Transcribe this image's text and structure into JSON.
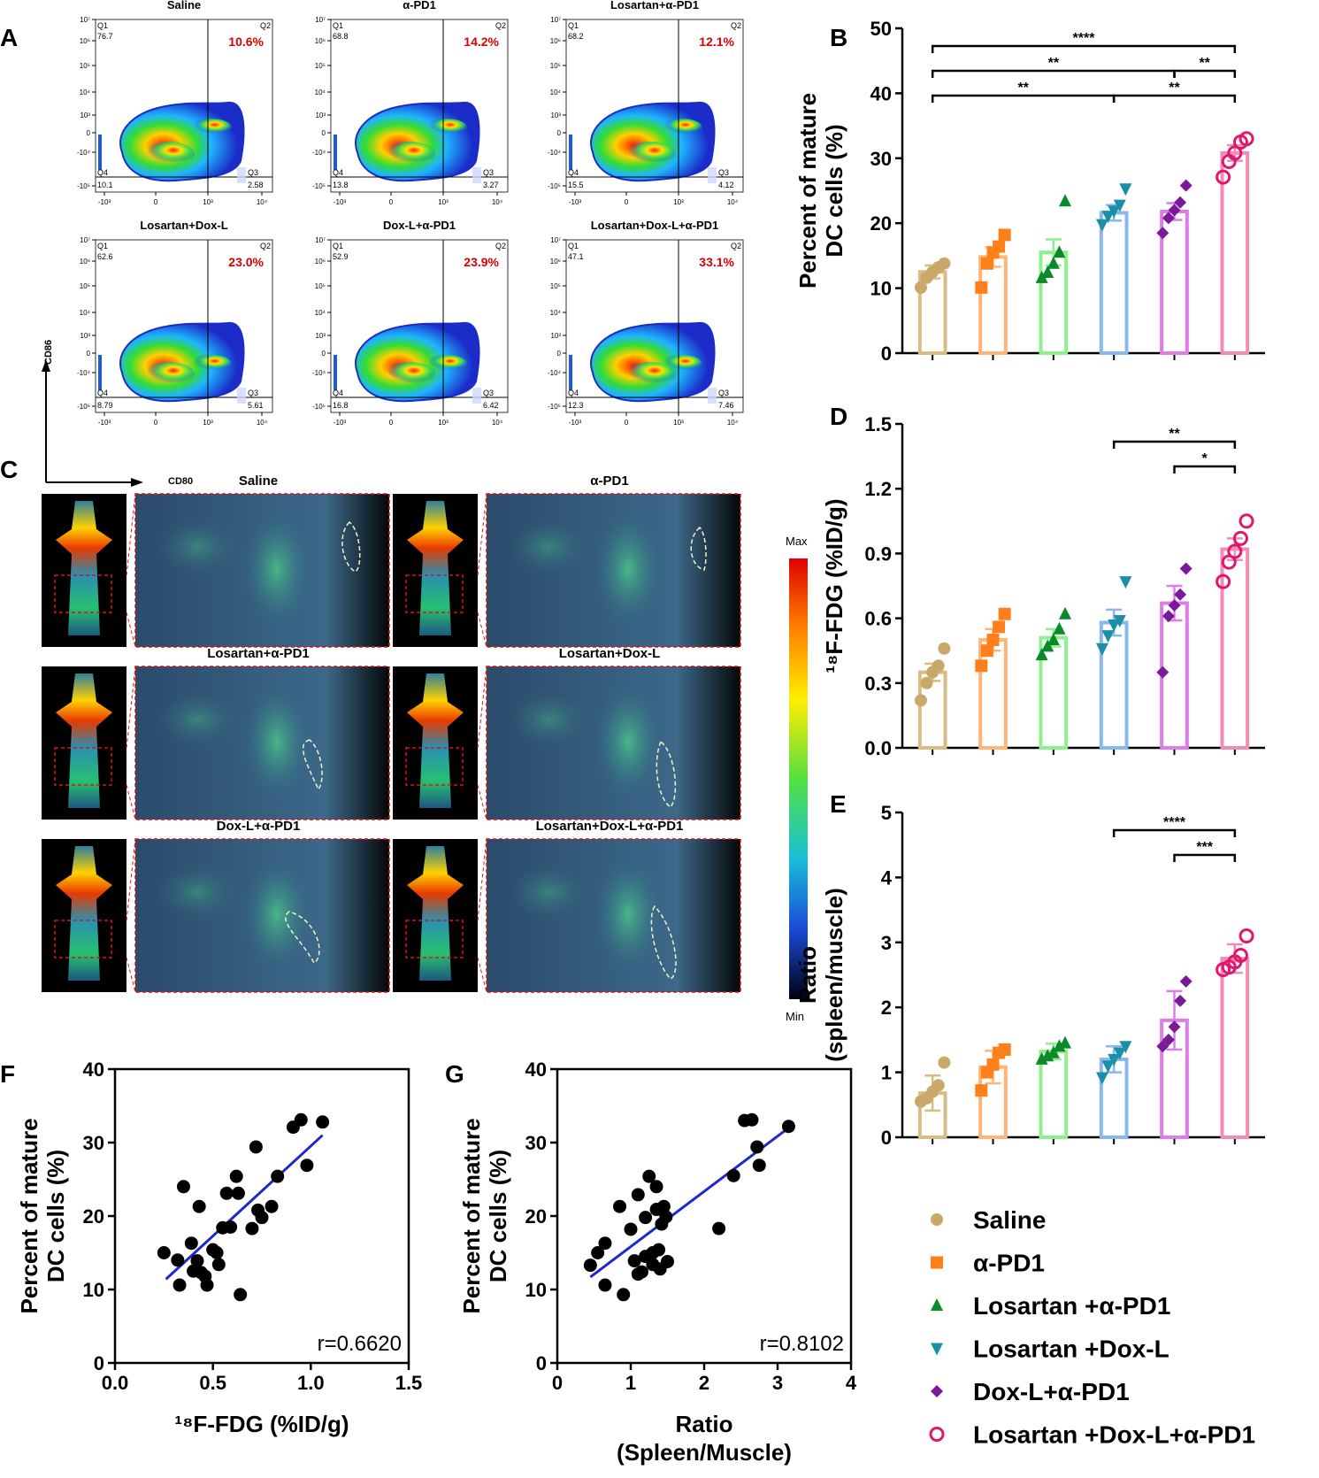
{
  "panel_letters": {
    "A": "A",
    "B": "B",
    "C": "C",
    "D": "D",
    "E": "E",
    "F": "F",
    "G": "G"
  },
  "colors": {
    "saline": "#c9a86a",
    "apd1": "#ff7f1a",
    "los_apd1": "#0a8a28",
    "los_doxl": "#1b8fa8",
    "doxl_apd1": "#7a1a9a",
    "triple": "#e0186c",
    "bar_saline": "#d8bc84",
    "bar_apd1": "#ffb578",
    "bar_los_apd1": "#8cf08c",
    "bar_los_doxl": "#8ab8ee",
    "bar_doxl_apd1": "#de7de8",
    "bar_triple": "#f38ab8",
    "percent_red": "#d90000",
    "regression": "#1f28c8"
  },
  "flow": {
    "x_axis_label": "CD80",
    "y_axis_label": "CD86",
    "y_ticks": [
      "10⁷",
      "10⁶",
      "10⁵",
      "10⁴",
      "10³",
      "0",
      "-10⁴",
      "-10⁵"
    ],
    "x_ticks": [
      "-10³",
      "0",
      "10³",
      "10⁴"
    ],
    "plots": [
      {
        "title": "Saline",
        "q1": "Q1",
        "q1_val": "76.7",
        "q2": "Q2",
        "q2_pct": "10.6%",
        "q3": "Q3",
        "q3_val": "2.58",
        "q4": "Q4",
        "q4_val": "10.1"
      },
      {
        "title": "α-PD1",
        "q1": "Q1",
        "q1_val": "68.8",
        "q2": "Q2",
        "q2_pct": "14.2%",
        "q3": "Q3",
        "q3_val": "3.27",
        "q4": "Q4",
        "q4_val": "13.8"
      },
      {
        "title": "Losartan+α-PD1",
        "q1": "Q1",
        "q1_val": "68.2",
        "q2": "Q2",
        "q2_pct": "12.1%",
        "q3": "Q3",
        "q3_val": "4.12",
        "q4": "Q4",
        "q4_val": "15.5"
      },
      {
        "title": "Losartan+Dox-L",
        "q1": "Q1",
        "q1_val": "62.6",
        "q2": "Q2",
        "q2_pct": "23.0%",
        "q3": "Q3",
        "q3_val": "5.61",
        "q4": "Q4",
        "q4_val": "8.79"
      },
      {
        "title": "Dox-L+α-PD1",
        "q1": "Q1",
        "q1_val": "52.9",
        "q2": "Q2",
        "q2_pct": "23.9%",
        "q3": "Q3",
        "q3_val": "6.42",
        "q4": "Q4",
        "q4_val": "16.8"
      },
      {
        "title": "Losartan+Dox-L+α-PD1",
        "q1": "Q1",
        "q1_val": "47.1",
        "q2": "Q2",
        "q2_pct": "33.1%",
        "q3": "Q3",
        "q3_val": "7.46",
        "q4": "Q4",
        "q4_val": "12.3"
      }
    ]
  },
  "pet": {
    "scale_max": "Max",
    "scale_min": "Min",
    "images": [
      {
        "title": "Saline"
      },
      {
        "title": "α-PD1"
      },
      {
        "title": "Losartan+α-PD1"
      },
      {
        "title": "Losartan+Dox-L"
      },
      {
        "title": "Dox-L+α-PD1"
      },
      {
        "title": "Losartan+Dox-L+α-PD1"
      }
    ]
  },
  "chart_data": [
    {
      "id": "B",
      "type": "bar",
      "ylabel_line1": "Percent of mature",
      "ylabel_line2": "DC cells  (%)",
      "ylim": [
        0,
        50
      ],
      "yticks": [
        "0",
        "10",
        "20",
        "30",
        "40",
        "50"
      ],
      "categories": [
        "Saline",
        "α-PD1",
        "Losartan+α-PD1",
        "Losartan+Dox-L",
        "Dox-L+α-PD1",
        "Losartan+Dox-L+α-PD1"
      ],
      "means": [
        12.5,
        14.8,
        15.5,
        21.6,
        21.8,
        30.8
      ],
      "sem": [
        1.0,
        1.5,
        2.0,
        1.2,
        1.3,
        1.2
      ],
      "points": [
        [
          10.1,
          11.6,
          12.5,
          13.2,
          13.8
        ],
        [
          10.1,
          13.8,
          15.5,
          16.4,
          18.2
        ],
        [
          11.6,
          12.4,
          13.8,
          15.5,
          23.4
        ],
        [
          19.8,
          21.1,
          21.9,
          22.8,
          25.3
        ],
        [
          18.5,
          20.8,
          22.0,
          23.2,
          25.8
        ],
        [
          27.1,
          29.5,
          30.8,
          32.5,
          33.0
        ]
      ],
      "sig": [
        {
          "from": 0,
          "to": 5,
          "level": 0,
          "label": "****"
        },
        {
          "from": 0,
          "to": 4,
          "level": 1,
          "label": "**"
        },
        {
          "from": 4,
          "to": 5,
          "level": 1,
          "label": "**"
        },
        {
          "from": 0,
          "to": 3,
          "level": 2,
          "label": "**"
        },
        {
          "from": 3,
          "to": 5,
          "level": 2,
          "label": "**"
        }
      ]
    },
    {
      "id": "D",
      "type": "bar",
      "ylabel_line1": "¹⁸F-FDG (%ID/g)",
      "ylabel_line2": "",
      "ylim": [
        0,
        1.5
      ],
      "yticks": [
        "0.0",
        "0.3",
        "0.6",
        "0.9",
        "1.2",
        "1.5"
      ],
      "categories": [
        "Saline",
        "α-PD1",
        "Losartan+α-PD1",
        "Losartan+Dox-L",
        "Dox-L+α-PD1",
        "Losartan+Dox-L+α-PD1"
      ],
      "means": [
        0.35,
        0.5,
        0.51,
        0.58,
        0.67,
        0.92
      ],
      "sem": [
        0.04,
        0.05,
        0.04,
        0.06,
        0.08,
        0.05
      ],
      "points": [
        [
          0.22,
          0.3,
          0.35,
          0.38,
          0.46
        ],
        [
          0.38,
          0.45,
          0.5,
          0.56,
          0.62
        ],
        [
          0.43,
          0.47,
          0.5,
          0.55,
          0.62
        ],
        [
          0.46,
          0.52,
          0.57,
          0.59,
          0.77
        ],
        [
          0.35,
          0.61,
          0.66,
          0.71,
          0.83
        ],
        [
          0.77,
          0.86,
          0.91,
          0.97,
          1.05
        ]
      ],
      "sig": [
        {
          "from": 3,
          "to": 5,
          "level": 0,
          "label": "**"
        },
        {
          "from": 4,
          "to": 5,
          "level": 1,
          "label": "*"
        }
      ]
    },
    {
      "id": "E",
      "type": "bar",
      "ylabel_line1": "Ratio",
      "ylabel_line2": "(spleen/muscle)",
      "ylim": [
        0,
        5
      ],
      "yticks": [
        "0",
        "1",
        "2",
        "3",
        "4",
        "5"
      ],
      "categories": [
        "Saline",
        "α-PD1",
        "Losartan+α-PD1",
        "Losartan+Dox-L",
        "Dox-L+α-PD1",
        "Losartan+Dox-L+α-PD1"
      ],
      "means": [
        0.68,
        1.08,
        1.32,
        1.2,
        1.8,
        2.75
      ],
      "sem": [
        0.27,
        0.25,
        0.12,
        0.2,
        0.45,
        0.22
      ],
      "points": [
        [
          0.55,
          0.6,
          0.7,
          0.8,
          1.15
        ],
        [
          0.72,
          1.0,
          1.12,
          1.3,
          1.35
        ],
        [
          1.2,
          1.25,
          1.3,
          1.4,
          1.45
        ],
        [
          0.92,
          1.1,
          1.2,
          1.3,
          1.4
        ],
        [
          1.4,
          1.5,
          1.7,
          2.1,
          2.4
        ],
        [
          2.58,
          2.62,
          2.7,
          2.8,
          3.1
        ]
      ],
      "sig": [
        {
          "from": 3,
          "to": 5,
          "level": 0,
          "label": "****"
        },
        {
          "from": 4,
          "to": 5,
          "level": 1,
          "label": "***"
        }
      ]
    },
    {
      "id": "F",
      "type": "scatter",
      "xlabel": "¹⁸F-FDG (%ID/g)",
      "ylabel_line1": "Percent of mature",
      "ylabel_line2": "DC cells (%)",
      "xlim": [
        0,
        1.5
      ],
      "ylim": [
        0,
        40
      ],
      "xticks": [
        "0.0",
        "0.5",
        "1.0",
        "1.5"
      ],
      "yticks": [
        "0",
        "10",
        "20",
        "30",
        "40"
      ],
      "r_label": "r=0.6620",
      "fit": [
        [
          0.26,
          11.4
        ],
        [
          1.06,
          31.0
        ]
      ],
      "points": [
        [
          0.25,
          15
        ],
        [
          0.32,
          14
        ],
        [
          0.33,
          10.6
        ],
        [
          0.35,
          24
        ],
        [
          0.39,
          16.3
        ],
        [
          0.4,
          12.5
        ],
        [
          0.42,
          13.9
        ],
        [
          0.43,
          21.3
        ],
        [
          0.44,
          12.3
        ],
        [
          0.46,
          11.8
        ],
        [
          0.47,
          10.6
        ],
        [
          0.5,
          15.4
        ],
        [
          0.52,
          15
        ],
        [
          0.53,
          13.4
        ],
        [
          0.55,
          18.4
        ],
        [
          0.57,
          23.1
        ],
        [
          0.59,
          18.5
        ],
        [
          0.62,
          25.4
        ],
        [
          0.63,
          23.1
        ],
        [
          0.64,
          9.3
        ],
        [
          0.7,
          18.3
        ],
        [
          0.72,
          29.4
        ],
        [
          0.73,
          20.8
        ],
        [
          0.75,
          19.8
        ],
        [
          0.8,
          21.3
        ],
        [
          0.83,
          25.4
        ],
        [
          0.91,
          32.1
        ],
        [
          0.95,
          33.1
        ],
        [
          0.98,
          26.9
        ],
        [
          1.06,
          32.8
        ]
      ]
    },
    {
      "id": "G",
      "type": "scatter",
      "xlabel_line1": "Ratio",
      "xlabel_line2": "(Spleen/Muscle)",
      "ylabel_line1": "Percent of mature",
      "ylabel_line2": "DC cells  (%)",
      "xlim": [
        0,
        4
      ],
      "ylim": [
        0,
        40
      ],
      "xticks": [
        "0",
        "1",
        "2",
        "3",
        "4"
      ],
      "yticks": [
        "0",
        "10",
        "20",
        "30",
        "40"
      ],
      "r_label": "r=0.8102",
      "fit": [
        [
          0.45,
          11.7
        ],
        [
          3.15,
          32.0
        ]
      ],
      "points": [
        [
          0.45,
          13.3
        ],
        [
          0.55,
          15
        ],
        [
          0.65,
          16.3
        ],
        [
          0.65,
          10.6
        ],
        [
          0.85,
          21.3
        ],
        [
          0.9,
          9.3
        ],
        [
          1.0,
          18.2
        ],
        [
          1.05,
          13.9
        ],
        [
          1.1,
          12.1
        ],
        [
          1.1,
          22.9
        ],
        [
          1.15,
          12.4
        ],
        [
          1.2,
          19.8
        ],
        [
          1.2,
          14.5
        ],
        [
          1.25,
          25.4
        ],
        [
          1.3,
          13.4
        ],
        [
          1.3,
          15
        ],
        [
          1.35,
          24
        ],
        [
          1.35,
          20.9
        ],
        [
          1.38,
          15.4
        ],
        [
          1.4,
          12.8
        ],
        [
          1.42,
          18.9
        ],
        [
          1.45,
          21.3
        ],
        [
          1.48,
          19.9
        ],
        [
          1.5,
          13.8
        ],
        [
          2.2,
          18.3
        ],
        [
          2.4,
          25.5
        ],
        [
          2.55,
          33.0
        ],
        [
          2.65,
          33.1
        ],
        [
          2.72,
          29.4
        ],
        [
          2.75,
          26.9
        ],
        [
          3.15,
          32.2
        ]
      ]
    }
  ],
  "legend": [
    {
      "label": "Saline",
      "marker": "circle"
    },
    {
      "label": "α-PD1",
      "marker": "square"
    },
    {
      "label": "Losartan +α-PD1",
      "marker": "triangle-up"
    },
    {
      "label": "Losartan +Dox-L",
      "marker": "triangle-down"
    },
    {
      "label": "Dox-L+α-PD1",
      "marker": "diamond"
    },
    {
      "label": "Losartan +Dox-L+α-PD1",
      "marker": "open-circle"
    }
  ]
}
